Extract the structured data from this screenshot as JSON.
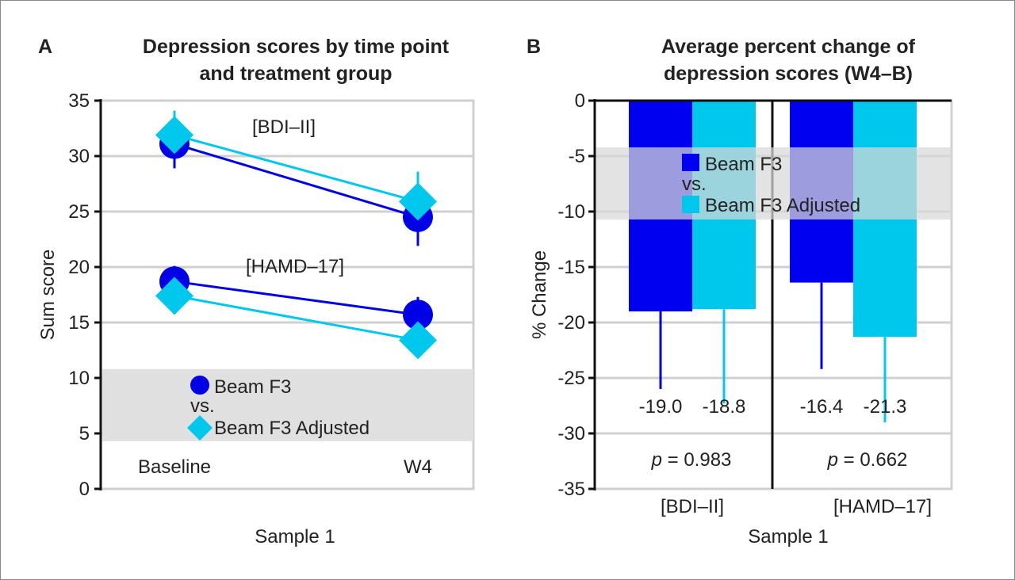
{
  "chart_data": [
    {
      "type": "line",
      "panel_label": "A",
      "title": [
        "Depression scores by time point",
        "and treatment group"
      ],
      "xlabel": "Sample 1",
      "ylabel": "Sum score",
      "categories": [
        "Baseline",
        "W4"
      ],
      "ylim": [
        0,
        35
      ],
      "yticks": [
        0,
        5,
        10,
        15,
        20,
        25,
        30,
        35
      ],
      "grid": true,
      "annotations": [
        "[BDI–II]",
        "[HAMD–17]"
      ],
      "legend": {
        "placement": "bottom",
        "items": [
          "Beam F3",
          "vs.",
          "Beam F3 Adjusted"
        ]
      },
      "series": [
        {
          "name": "Beam F3",
          "scale": "BDI–II",
          "marker": "circle",
          "color": "#0000e6",
          "values": [
            31.1,
            24.5
          ],
          "err_low": [
            28.9,
            21.9
          ],
          "err_high": [
            33.2,
            27.0
          ]
        },
        {
          "name": "Beam F3 Adjusted",
          "scale": "BDI–II",
          "marker": "diamond",
          "color": "#00c8ec",
          "values": [
            31.9,
            25.9
          ],
          "err_low": [
            29.8,
            23.4
          ],
          "err_high": [
            34.1,
            28.6
          ]
        },
        {
          "name": "Beam F3",
          "scale": "HAMD–17",
          "marker": "circle",
          "color": "#0000e6",
          "values": [
            18.7,
            15.7
          ],
          "err_low": [
            17.3,
            14.1
          ],
          "err_high": [
            20.1,
            17.3
          ]
        },
        {
          "name": "Beam F3 Adjusted",
          "scale": "HAMD–17",
          "marker": "diamond",
          "color": "#00c8ec",
          "values": [
            17.4,
            13.4
          ],
          "err_low": [
            16.0,
            11.8
          ],
          "err_high": [
            18.8,
            15.0
          ]
        }
      ]
    },
    {
      "type": "bar",
      "panel_label": "B",
      "title": [
        "Average percent change of",
        "depression scores (W4–B)"
      ],
      "xlabel": "Sample 1",
      "ylabel": "% Change",
      "categories": [
        "[BDI–II]",
        "[HAMD–17]"
      ],
      "ylim": [
        -35,
        0
      ],
      "yticks": [
        0,
        -5,
        -10,
        -15,
        -20,
        -25,
        -30,
        -35
      ],
      "grid": true,
      "legend": {
        "placement": "top",
        "items": [
          "Beam F3",
          "vs.",
          "Beam F3 Adjusted"
        ]
      },
      "series": [
        {
          "name": "Beam F3",
          "color": "#0000f0",
          "values": [
            -19.0,
            -16.4
          ],
          "labels": [
            "-19.0",
            "-16.4"
          ],
          "err_low": [
            -26.0,
            -24.2
          ]
        },
        {
          "name": "Beam F3 Adjusted",
          "color": "#00c8ec",
          "values": [
            -18.8,
            -21.3
          ],
          "labels": [
            "-18.8",
            "-21.3"
          ],
          "err_low": [
            -27.3,
            -29.0
          ]
        }
      ],
      "p_values": [
        "0.983",
        "0.662"
      ],
      "p_symbol": "p"
    }
  ]
}
